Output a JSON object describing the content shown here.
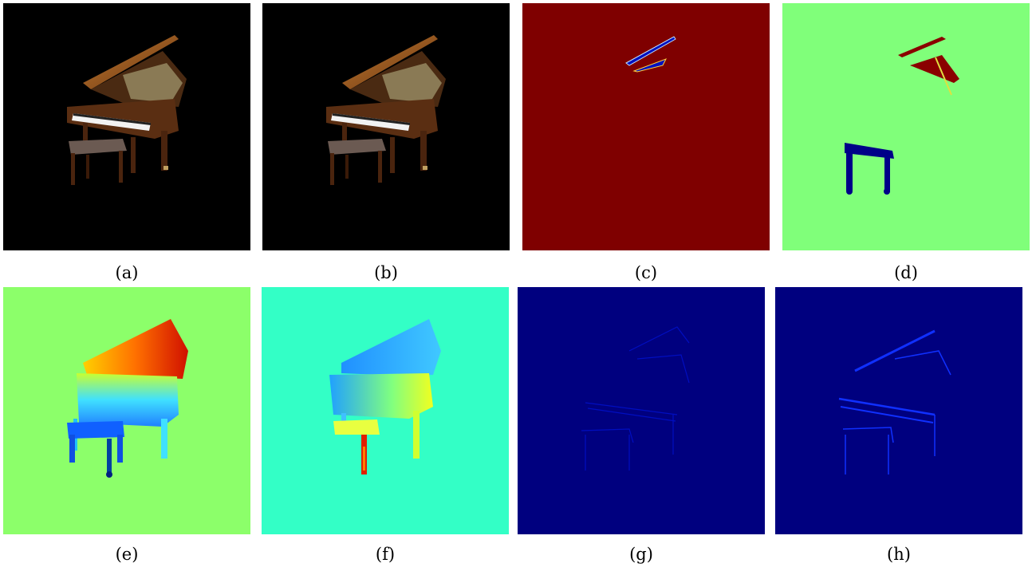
{
  "figure": {
    "panels": [
      {
        "id": "a",
        "caption": "(a)"
      },
      {
        "id": "b",
        "caption": "(b)"
      },
      {
        "id": "c",
        "caption": "(c)"
      },
      {
        "id": "d",
        "caption": "(d)"
      },
      {
        "id": "e",
        "caption": "(e)"
      },
      {
        "id": "f",
        "caption": "(f)"
      },
      {
        "id": "g",
        "caption": "(g)"
      },
      {
        "id": "h",
        "caption": "(h)"
      }
    ]
  },
  "colors": {
    "black_bg": "#000000",
    "dark_red": "#7f0000",
    "light_green": "#80ff7a",
    "cyan_green": "#33ffc6",
    "navy": "#00007f",
    "wood": "#5a2e12",
    "wood_light": "#8a4a1e",
    "keys_white": "#f2f2f2",
    "bench_top": "#6b5a52"
  }
}
